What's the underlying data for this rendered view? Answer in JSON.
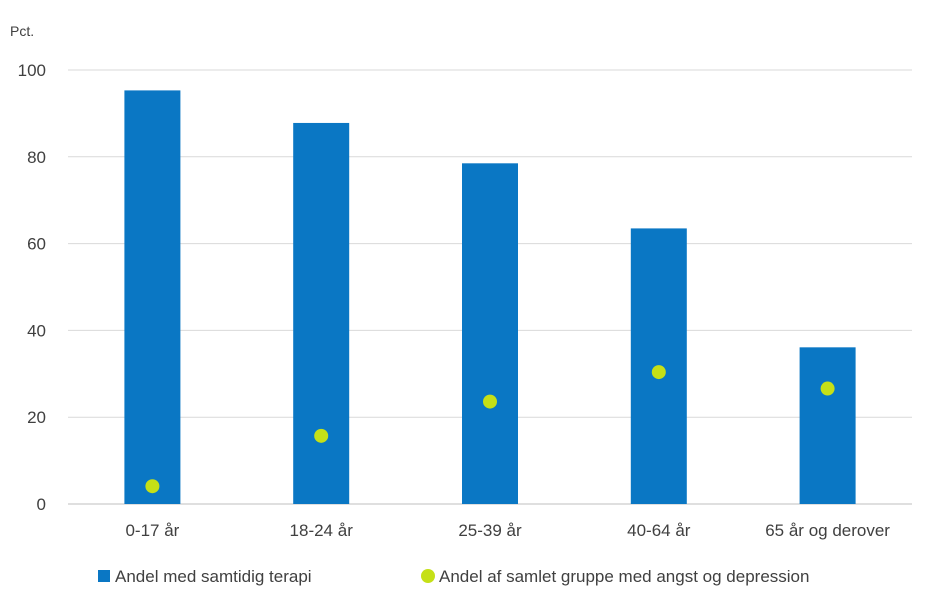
{
  "chart_data": {
    "type": "bar",
    "ylabel": "Pct.",
    "ylim": [
      0,
      100
    ],
    "yticks": [
      "0",
      "20",
      "40",
      "60",
      "80",
      "100"
    ],
    "grid": true,
    "legend_position": "bottom",
    "categories": [
      "0-17 år",
      "18-24 år",
      "25-39 år",
      "40-64 år",
      "65 år og derover"
    ],
    "series": [
      {
        "name": "Andel med samtidig terapi",
        "mark": "bar",
        "color": "#0a77c4",
        "values": [
          95.3,
          87.8,
          78.5,
          63.5,
          36.1
        ]
      },
      {
        "name": "Andel af samlet gruppe med angst og depression",
        "mark": "point",
        "color": "#c5e017",
        "values": [
          4.1,
          15.7,
          23.6,
          30.4,
          26.6
        ]
      }
    ]
  }
}
